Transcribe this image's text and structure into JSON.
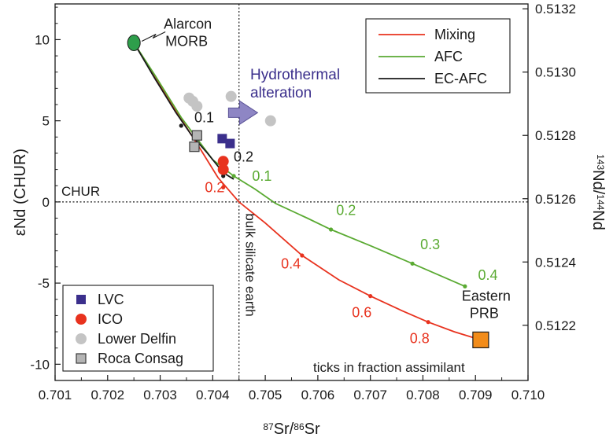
{
  "chart_data": {
    "type": "scatter",
    "xlabel": {
      "sup1": "87",
      "base1": "Sr/",
      "sup2": "86",
      "base2": "Sr"
    },
    "ylabel": "εNd (CHUR)",
    "y2label": {
      "sup1": "143",
      "base1": "Nd/",
      "sup2": "144",
      "base2": "Nd"
    },
    "xlim": [
      0.701,
      0.71
    ],
    "ylim": [
      -11,
      12.2
    ],
    "xticks": [
      "0.701",
      "0.702",
      "0.703",
      "0.704",
      "0.705",
      "0.706",
      "0.707",
      "0.708",
      "0.709",
      "0.710"
    ],
    "yticks": [
      {
        "v": 10,
        "label": "10"
      },
      {
        "v": 5,
        "label": "5"
      },
      {
        "v": 0,
        "label": "0"
      },
      {
        "v": -5,
        "label": "-5"
      },
      {
        "v": -10,
        "label": "-10"
      }
    ],
    "y2ticks": [
      {
        "v": 11.9,
        "label": "0.5132"
      },
      {
        "v": 8.0,
        "label": "0.5130"
      },
      {
        "v": 4.1,
        "label": "0.5128"
      },
      {
        "v": 0.2,
        "label": "0.5126"
      },
      {
        "v": -3.7,
        "label": "0.5124"
      },
      {
        "v": -7.6,
        "label": "0.5122"
      }
    ],
    "reference_lines": {
      "chur": {
        "y": 0,
        "label": "CHUR"
      },
      "bse": {
        "x": 0.7045,
        "label": "bulk silicate earth"
      }
    },
    "curves": [
      {
        "name": "Mixing",
        "color": "#e8321e",
        "points": [
          [
            0.7025,
            9.8
          ],
          [
            0.7029,
            7.7
          ],
          [
            0.7033,
            5.6
          ],
          [
            0.7037,
            3.6
          ],
          [
            0.7041,
            1.5
          ],
          [
            0.7045,
            0.0
          ],
          [
            0.705,
            -1.3
          ],
          [
            0.7057,
            -3.3
          ],
          [
            0.7064,
            -4.8
          ],
          [
            0.707,
            -5.8
          ],
          [
            0.7076,
            -6.7
          ],
          [
            0.7081,
            -7.4
          ],
          [
            0.7086,
            -8.0
          ],
          [
            0.7091,
            -8.5
          ]
        ],
        "ticks": [
          [
            0.7042,
            0.9
          ],
          [
            0.7057,
            -3.3
          ],
          [
            0.707,
            -5.8
          ],
          [
            0.7081,
            -7.4
          ]
        ],
        "tick_labels": [
          {
            "text": "0.2",
            "x": 0.70385,
            "y": 0.6
          },
          {
            "text": "0.4",
            "x": 0.7053,
            "y": -4.1
          },
          {
            "text": "0.6",
            "x": 0.70665,
            "y": -7.1
          },
          {
            "text": "0.8",
            "x": 0.70775,
            "y": -8.7
          }
        ]
      },
      {
        "name": "AFC",
        "color": "#5aaa32",
        "points": [
          [
            0.7025,
            9.8
          ],
          [
            0.7029,
            7.8
          ],
          [
            0.7034,
            5.2
          ],
          [
            0.704,
            2.6
          ],
          [
            0.7044,
            1.6
          ],
          [
            0.7048,
            0.8
          ],
          [
            0.7052,
            -0.1
          ],
          [
            0.7058,
            -1.0
          ],
          [
            0.70625,
            -1.7
          ],
          [
            0.707,
            -2.7
          ],
          [
            0.7078,
            -3.8
          ],
          [
            0.7083,
            -4.5
          ],
          [
            0.7088,
            -5.2
          ]
        ],
        "ticks": [
          [
            0.7044,
            1.6
          ],
          [
            0.70625,
            -1.7
          ],
          [
            0.7078,
            -3.8
          ],
          [
            0.7088,
            -5.2
          ]
        ],
        "tick_labels": [
          {
            "text": "0.1",
            "x": 0.70475,
            "y": 1.3
          },
          {
            "text": "0.2",
            "x": 0.70635,
            "y": -0.8
          },
          {
            "text": "0.3",
            "x": 0.70795,
            "y": -2.9
          },
          {
            "text": "0.4",
            "x": 0.70905,
            "y": -4.8
          }
        ]
      },
      {
        "name": "EC-AFC",
        "color": "#1a1a1a",
        "points": [
          [
            0.7025,
            9.8
          ],
          [
            0.7029,
            7.6
          ],
          [
            0.7033,
            5.5
          ],
          [
            0.7036,
            4.1
          ],
          [
            0.7039,
            3.0
          ],
          [
            0.7042,
            1.8
          ],
          [
            0.7044,
            1.4
          ]
        ],
        "ticks": [
          [
            0.7034,
            4.7
          ],
          [
            0.7042,
            1.6
          ]
        ],
        "tick_labels": [
          {
            "text": "0.1",
            "x": 0.70365,
            "y": 4.9
          },
          {
            "text": "0.2",
            "x": 0.7044,
            "y": 2.5
          }
        ]
      }
    ],
    "series": [
      {
        "name": "LVC",
        "marker": "square",
        "color": "#3b2f8c",
        "points": [
          [
            0.70418,
            3.9
          ],
          [
            0.70433,
            3.6
          ]
        ]
      },
      {
        "name": "ICO",
        "marker": "circle",
        "color": "#e8321e",
        "points": [
          [
            0.7042,
            2.5
          ],
          [
            0.7042,
            2.0
          ]
        ]
      },
      {
        "name": "Lower Delfin",
        "marker": "circle",
        "color": "#c4c4c4",
        "points": [
          [
            0.70355,
            6.4
          ],
          [
            0.70362,
            6.2
          ],
          [
            0.7037,
            5.9
          ],
          [
            0.70435,
            6.5
          ],
          [
            0.7051,
            5.0
          ]
        ]
      },
      {
        "name": "Roca Consag",
        "marker": "square-outline",
        "color": "#b4b4b4",
        "points": [
          [
            0.7037,
            4.1
          ],
          [
            0.70365,
            3.4
          ]
        ]
      }
    ],
    "endmembers": [
      {
        "name_lines": [
          "Alarcon",
          "MORB"
        ],
        "x": 0.7025,
        "y": 9.8,
        "color": "#2e9e4b"
      },
      {
        "name_lines": [
          "Eastern",
          "PRB"
        ],
        "x": 0.7091,
        "y": -8.5,
        "color": "#f28c1a"
      }
    ],
    "annotations": {
      "hydrothermal": {
        "lines": [
          "Hydrothermal",
          "alteration"
        ],
        "color": "#3b2f8c",
        "arrow_color": "#8e86c4"
      },
      "ticks_note": "ticks in fraction assimilant"
    },
    "legend_curves_position": "top-right",
    "legend_markers_position": "bottom-left",
    "grid": false
  }
}
